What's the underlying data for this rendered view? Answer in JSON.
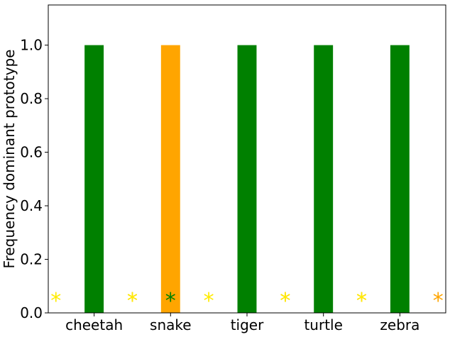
{
  "chart_data": {
    "type": "bar",
    "title": "",
    "xlabel": "",
    "ylabel": "Frequency dominant prototype",
    "ylim": [
      0,
      1.15
    ],
    "yticks": [
      0.0,
      0.2,
      0.4,
      0.6,
      0.8,
      1.0
    ],
    "ytick_labels": [
      "0.0",
      "0.2",
      "0.4",
      "0.6",
      "0.8",
      "1.0"
    ],
    "grid": false,
    "legend": "none",
    "categories": [
      "cheetah",
      "snake",
      "tiger",
      "turtle",
      "zebra"
    ],
    "series": [
      {
        "color": "#008000",
        "values": [
          1.0,
          0.0,
          1.0,
          1.0,
          1.0
        ]
      },
      {
        "color": "#FFA500",
        "values": [
          0.0,
          1.0,
          0.0,
          0.0,
          0.0
        ]
      }
    ],
    "markers": [
      {
        "category": "cheetah",
        "slot": -1,
        "symbol": "*",
        "color": "#FFEB00"
      },
      {
        "category": "cheetah",
        "slot": 1,
        "symbol": "*",
        "color": "#FFA500"
      },
      {
        "category": "snake",
        "slot": -1,
        "symbol": "*",
        "color": "#FFEB00"
      },
      {
        "category": "snake",
        "slot": 0,
        "symbol": "*",
        "color": "#008000"
      },
      {
        "category": "tiger",
        "slot": -1,
        "symbol": "*",
        "color": "#FFEB00"
      },
      {
        "category": "tiger",
        "slot": 1,
        "symbol": "*",
        "color": "#FFA500"
      },
      {
        "category": "turtle",
        "slot": -1,
        "symbol": "*",
        "color": "#FFEB00"
      },
      {
        "category": "turtle",
        "slot": 1,
        "symbol": "*",
        "color": "#FFA500"
      },
      {
        "category": "zebra",
        "slot": -1,
        "symbol": "*",
        "color": "#FFEB00"
      },
      {
        "category": "zebra",
        "slot": 1,
        "symbol": "*",
        "color": "#FFA500"
      }
    ],
    "marker_y": 0.05
  }
}
